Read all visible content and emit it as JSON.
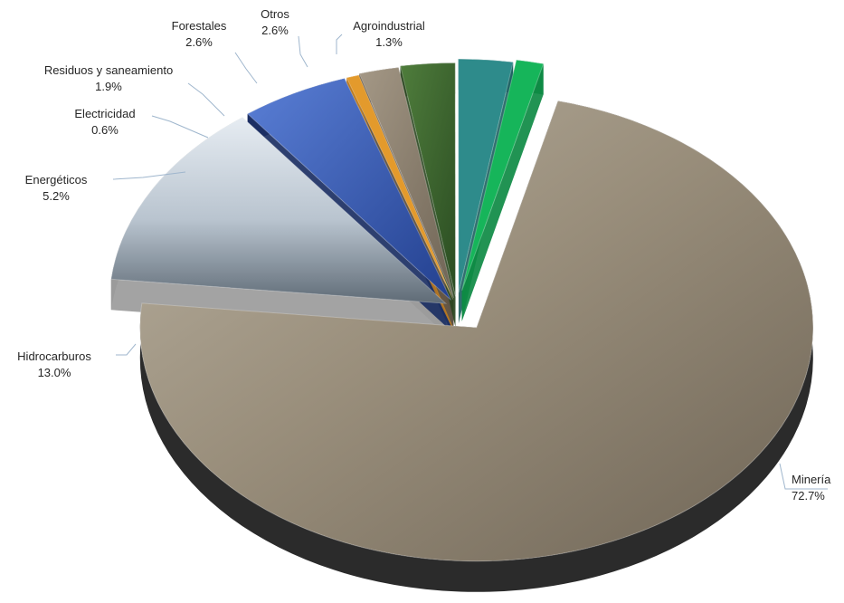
{
  "chart_data": {
    "type": "pie",
    "title": "",
    "slices": [
      {
        "label": "Minería",
        "value": 72.7,
        "value_label": "72.7%",
        "color": "#8c8070"
      },
      {
        "label": "Hidrocarburos",
        "value": 13.0,
        "value_label": "13.0%",
        "color": "#8a8c8f"
      },
      {
        "label": "Energéticos",
        "value": 5.2,
        "value_label": "5.2%",
        "color": "#1f3a7a"
      },
      {
        "label": "Electricidad",
        "value": 0.6,
        "value_label": "0.6%",
        "color": "#e39a2c"
      },
      {
        "label": "Residuos y saneamiento",
        "value": 1.9,
        "value_label": "1.9%",
        "color": "#8b7d6b"
      },
      {
        "label": "Forestales",
        "value": 2.6,
        "value_label": "2.6%",
        "color": "#3d6b2f"
      },
      {
        "label": "Otros",
        "value": 2.6,
        "value_label": "2.6%",
        "color": "#2e8b8b"
      },
      {
        "label": "Agroindustrial",
        "value": 1.3,
        "value_label": "1.3%",
        "color": "#16b55a"
      }
    ],
    "legend": "none",
    "labels": "outside with leader lines"
  }
}
